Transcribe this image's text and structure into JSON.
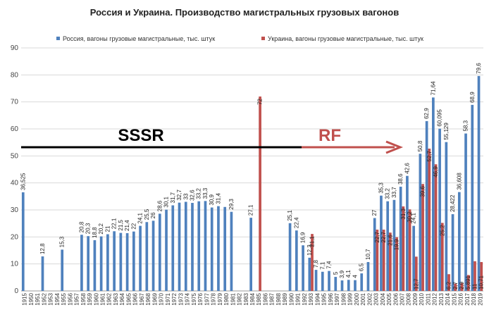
{
  "chart_data": {
    "type": "bar",
    "title": "Россия и Украина. Производство магистральных грузовых вагонов",
    "ylim": [
      0,
      90
    ],
    "yticks": [
      0,
      10,
      20,
      30,
      40,
      50,
      60,
      70,
      80,
      90
    ],
    "grid": true,
    "legend_position": "top",
    "categories": [
      "1915",
      "1950",
      "1951",
      "1952",
      "1953",
      "1954",
      "1955",
      "1956",
      "1957",
      "1958",
      "1959",
      "1960",
      "1961",
      "1962",
      "1963",
      "1964",
      "1965",
      "1966",
      "1967",
      "1968",
      "1969",
      "1970",
      "1971",
      "1972",
      "1973",
      "1974",
      "1975",
      "1976",
      "1977",
      "1978",
      "1979",
      "1980",
      "1981",
      "1982",
      "1983",
      "1984",
      "1985",
      "1986",
      "1987",
      "1988",
      "1989",
      "1990",
      "1991",
      "1992",
      "1993",
      "1994",
      "1995",
      "1996",
      "1997",
      "1998",
      "1999",
      "2000",
      "2001",
      "2002",
      "2003",
      "2004",
      "2005",
      "2006",
      "2007",
      "2008",
      "2009",
      "2010",
      "2011",
      "2012",
      "2013",
      "2014",
      "2015",
      "2016",
      "2017",
      "2018",
      "2019"
    ],
    "series": [
      {
        "name": "Россия, вагоны грузовые магистральные, тыс. штук",
        "color": "#4f81bd",
        "values": [
          36.525,
          null,
          null,
          12.8,
          null,
          null,
          15.3,
          null,
          null,
          20.8,
          20.3,
          18.8,
          20.2,
          21,
          22.1,
          21.5,
          21.4,
          22,
          24.1,
          25.5,
          26,
          28.6,
          30.1,
          31.7,
          32.7,
          33,
          32.6,
          33.2,
          33.3,
          30.9,
          31.4,
          31.1,
          29.3,
          null,
          null,
          27.1,
          null,
          null,
          null,
          null,
          null,
          25.1,
          22.4,
          16.9,
          12.3,
          7.8,
          7.1,
          7.4,
          5.2,
          3.9,
          4.1,
          4,
          6.5,
          10.7,
          27,
          35.3,
          33.2,
          33.7,
          38.6,
          42.6,
          24.1,
          50.8,
          62.9,
          71.64,
          60.095,
          55.129,
          28.422,
          36.608,
          58.3,
          68.9,
          79.6
        ],
        "labels": [
          "36,525",
          "",
          "",
          "12,8",
          "",
          "",
          "15,3",
          "",
          "",
          "20,8",
          "20,3",
          "18,8",
          "20,2",
          "21",
          "22,1",
          "21,5",
          "21,4",
          "22",
          "24,1",
          "25,5",
          "26",
          "28,6",
          "30,1",
          "31,7",
          "32,7",
          "33",
          "32,6",
          "33,2",
          "33,3",
          "30,9",
          "31,4",
          "",
          "29,3",
          "",
          "",
          "27,1",
          "",
          "",
          "",
          "",
          "",
          "25,1",
          "22,4",
          "16,9",
          "12,3",
          "7,8",
          "7,1",
          "7,4",
          "5",
          "3,9",
          "4,1",
          "4",
          "6,5",
          "10,7",
          "27",
          "35,3",
          "33,2",
          "33,7",
          "38,6",
          "42,6",
          "24,1",
          "50,8",
          "62,9",
          "71,64",
          "60,095",
          "55,129",
          "28,422",
          "36,608",
          "58,3",
          "68,9",
          "79,6"
        ]
      },
      {
        "name": "Украина, вагоны грузовые магистральные, тыс. штук",
        "color": "#c0504d",
        "values": [
          null,
          null,
          null,
          null,
          null,
          null,
          null,
          null,
          null,
          null,
          null,
          null,
          null,
          null,
          null,
          null,
          null,
          null,
          null,
          null,
          null,
          null,
          null,
          null,
          null,
          null,
          null,
          null,
          null,
          null,
          null,
          null,
          null,
          null,
          null,
          null,
          72,
          null,
          null,
          null,
          null,
          null,
          null,
          null,
          21.1,
          null,
          null,
          null,
          null,
          null,
          null,
          null,
          null,
          null,
          22.7,
          22.7,
          21.6,
          19.9,
          31.3,
          30.2,
          12.7,
          39.6,
          52.7,
          46.9,
          25.2,
          6.2,
          2.7,
          2.9,
          5.891,
          11,
          10.7
        ],
        "labels": [
          "",
          "",
          "",
          "",
          "",
          "",
          "",
          "",
          "",
          "",
          "",
          "",
          "",
          "",
          "",
          "",
          "",
          "",
          "",
          "",
          "",
          "",
          "",
          "",
          "",
          "",
          "",
          "",
          "",
          "",
          "",
          "",
          "",
          "",
          "",
          "",
          "72",
          "",
          "",
          "",
          "",
          "",
          "",
          "",
          "21,1",
          "",
          "",
          "",
          "",
          "",
          "",
          "",
          "",
          "",
          "22,7",
          "22,7",
          "21,6",
          "19,9",
          "31,3",
          "30,2",
          "12,7",
          "39,6",
          "52,7",
          "46,9",
          "25,2",
          "6,2",
          "2,7",
          "2,9",
          "5,891",
          "11",
          "10,71"
        ]
      }
    ],
    "annotations": [
      {
        "text": "SSSR",
        "color": "#000000"
      },
      {
        "text": "RF",
        "color": "#c0504d"
      }
    ]
  }
}
